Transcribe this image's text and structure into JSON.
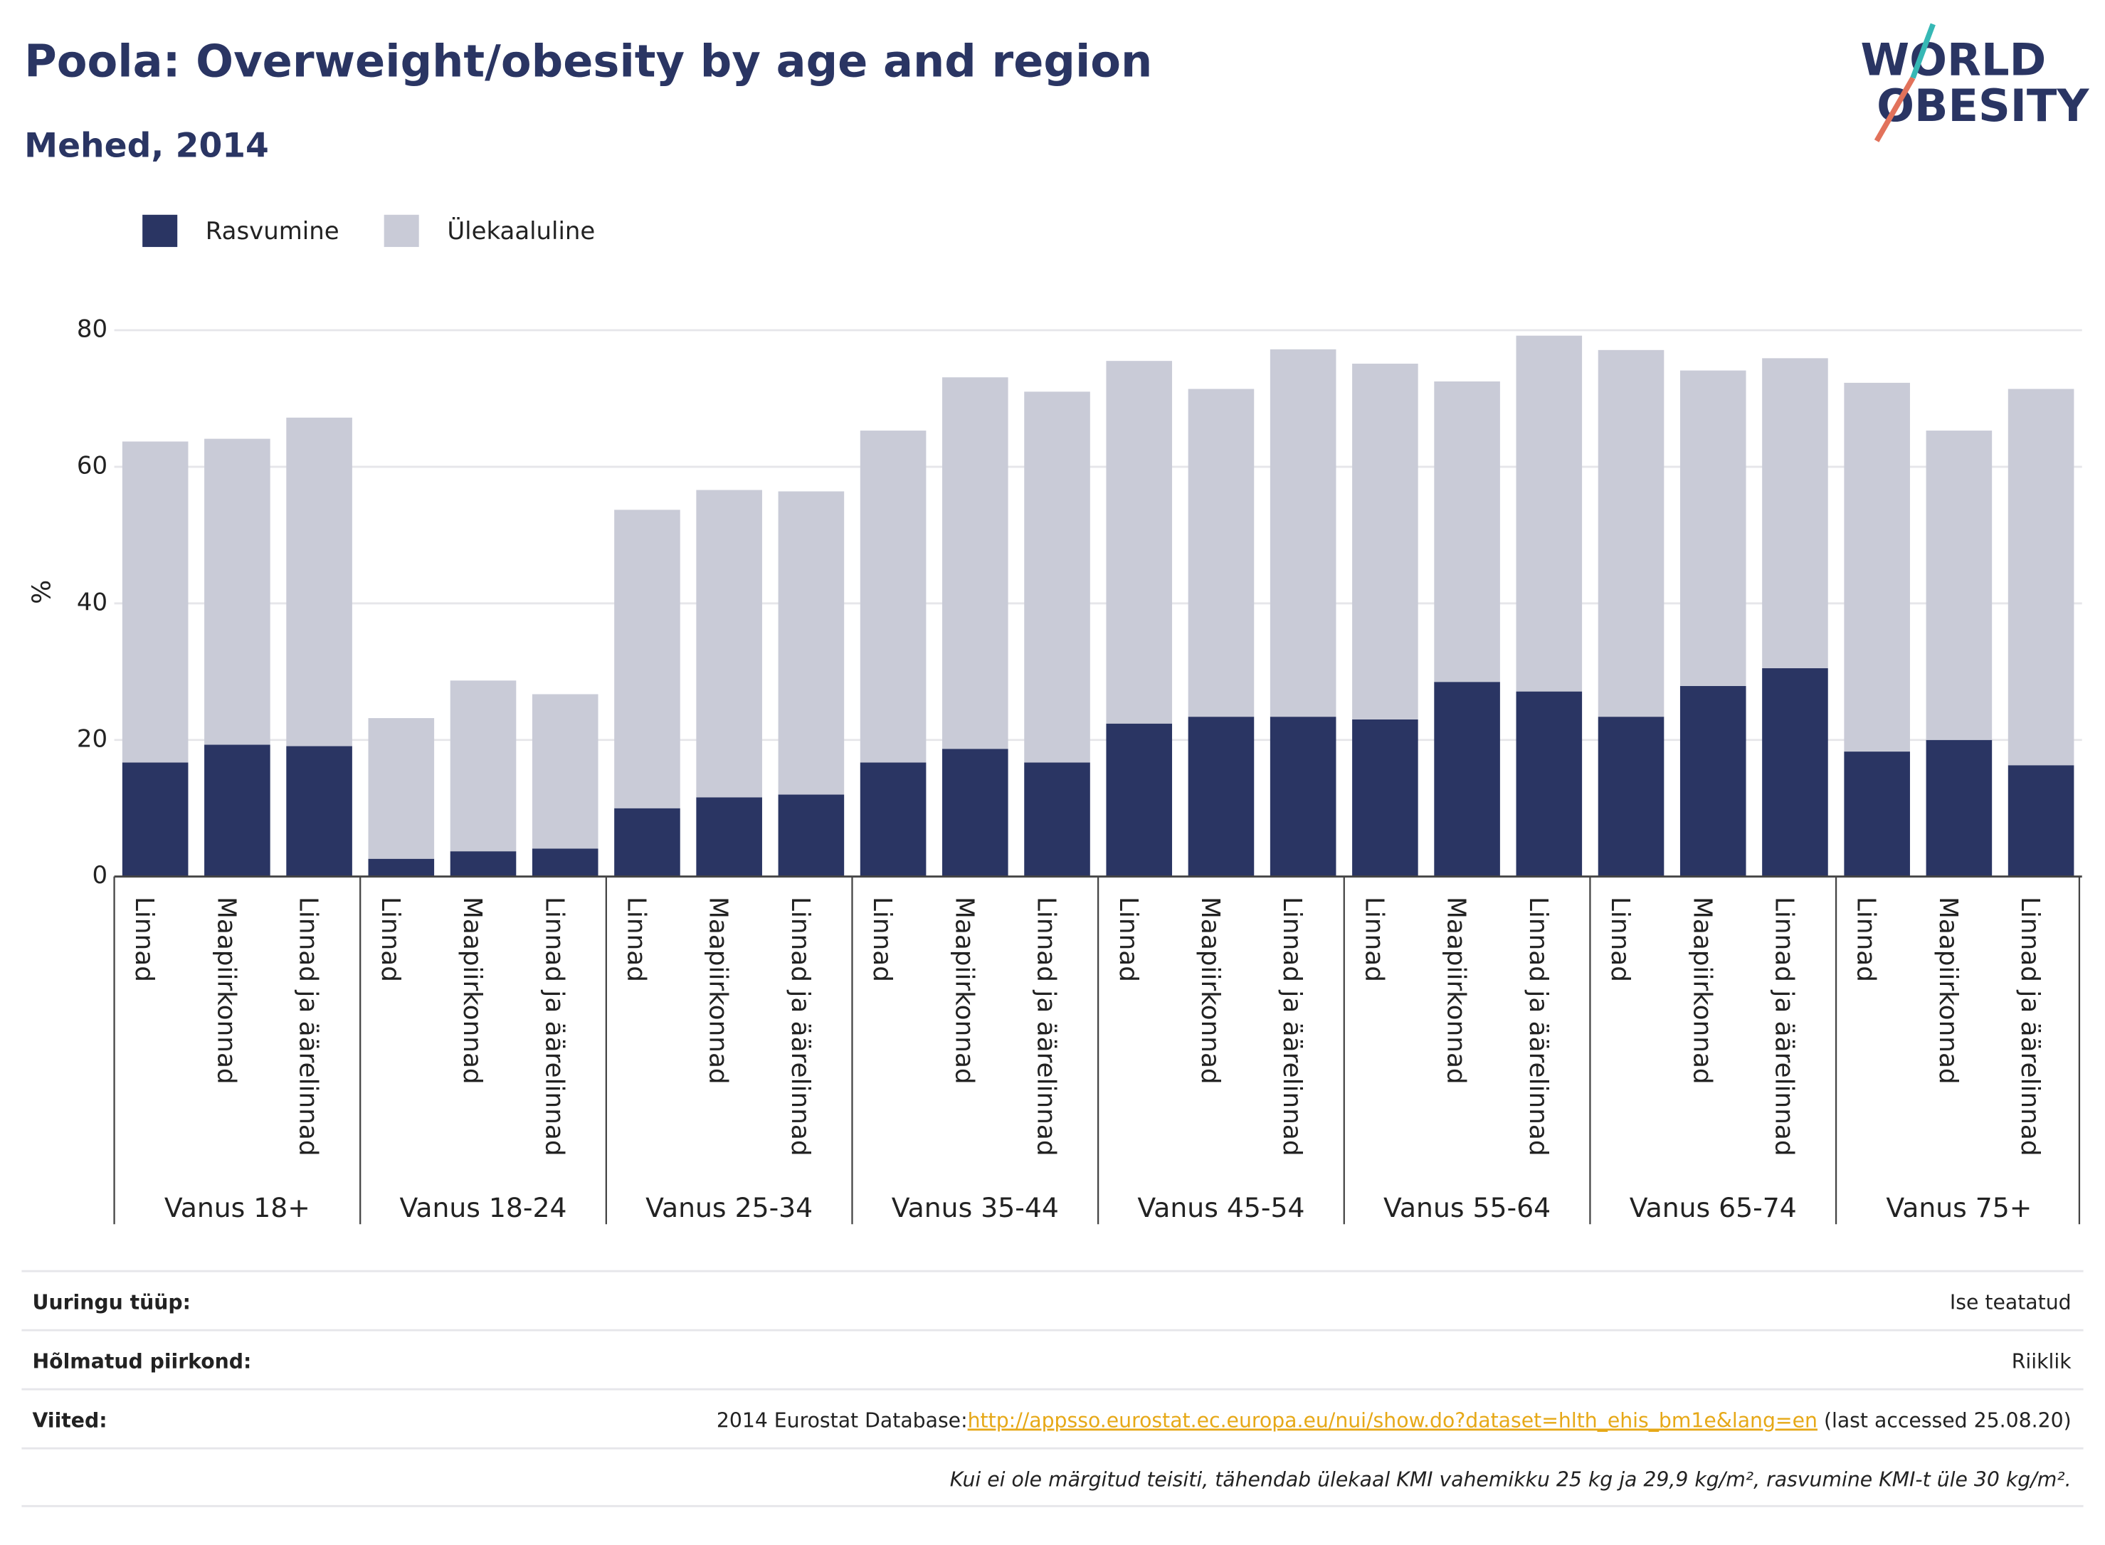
{
  "chart_data": {
    "type": "stacked_bar",
    "title": "Poola: Overweight/obesity by age and region",
    "subtitle": "Mehed, 2014",
    "y_label": "%",
    "groups": [
      "Vanus 18+",
      "Vanus 18-24",
      "Vanus 25-34",
      "Vanus 35-44",
      "Vanus 45-54",
      "Vanus 55-64",
      "Vanus 65-74",
      "Vanus 75+"
    ],
    "categories": [
      "Linnad",
      "Maapiirkonnad",
      "Linnad ja äärelinnad",
      "Linnad",
      "Maapiirkonnad",
      "Linnad ja äärelinnad",
      "Linnad",
      "Maapiirkonnad",
      "Linnad ja äärelinnad",
      "Linnad",
      "Maapiirkonnad",
      "Linnad ja äärelinnad",
      "Linnad",
      "Maapiirkonnad",
      "Linnad ja äärelinnad",
      "Linnad",
      "Maapiirkonnad",
      "Linnad ja äärelinnad",
      "Linnad",
      "Maapiirkonnad",
      "Linnad ja äärelinnad",
      "Linnad",
      "Maapiirkonnad",
      "Linnad ja äärelinnad"
    ],
    "series": [
      {
        "name": "Rasvumine",
        "color": "#2a3563",
        "values": [
          16.7,
          19.3,
          19.1,
          2.6,
          3.7,
          4.1,
          10.0,
          11.6,
          12.0,
          16.7,
          18.7,
          16.7,
          22.4,
          23.4,
          23.4,
          23.0,
          28.5,
          27.1,
          23.4,
          27.9,
          30.5,
          18.3,
          20.0,
          16.3
        ]
      },
      {
        "name": "Ülekaaluline",
        "color": "#c9cbd7",
        "values": [
          47.0,
          44.8,
          48.1,
          20.6,
          25.0,
          22.6,
          43.7,
          45.0,
          44.4,
          48.6,
          54.4,
          54.3,
          53.1,
          48.0,
          53.8,
          52.1,
          44.0,
          52.1,
          53.7,
          46.2,
          45.4,
          54.0,
          45.3,
          55.1
        ]
      }
    ],
    "ylim": [
      0,
      80
    ],
    "yticks": [
      0,
      20,
      40,
      60,
      80
    ],
    "grid": true,
    "legend": "top-left"
  },
  "logo": {
    "line1": "WORLD",
    "line2": "OBESITY"
  },
  "footer": {
    "rows": [
      {
        "label": "Uuringu tüüp:",
        "value": "Ise teatatud"
      },
      {
        "label": "Hõlmatud piirkond:",
        "value": "Riiklik"
      }
    ],
    "references": {
      "label": "Viited:",
      "prefix": "2014 Eurostat Database:",
      "link": "http://appsso.eurostat.ec.europa.eu/nui/show.do?dataset=hlth_ehis_bm1e&lang=en",
      "suffix": " (last accessed 25.08.20)"
    },
    "note": "Kui ei ole märgitud teisiti, tähendab ülekaal KMI vahemikku 25 kg ja 29,9 kg/m², rasvumine KMI-t üle 30 kg/m²."
  }
}
